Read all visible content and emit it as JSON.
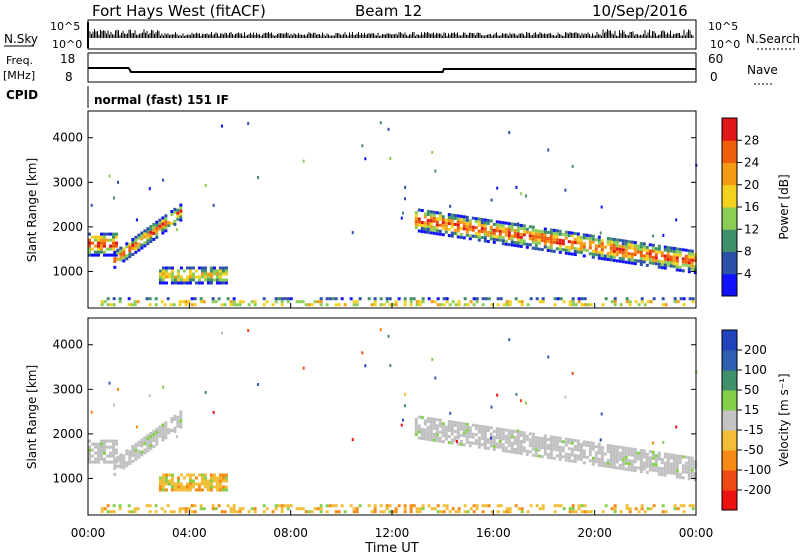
{
  "header": {
    "site": "Fort Hays West (fitACF)",
    "beam": "Beam 12",
    "date": "10/Sep/2016"
  },
  "status_panels": {
    "nsky_label": "N.Sky",
    "nsky_ticks": [
      "10^5",
      "10^0"
    ],
    "nsearch_label": "N.Search",
    "nsearch_ticks": [
      "10^5",
      "10^0"
    ],
    "freq_label": "Freq.",
    "freq_unit": "[MHz]",
    "freq_ticks": [
      "18",
      "8"
    ],
    "nave_label": "Nave",
    "nave_ticks": [
      "60",
      "0"
    ],
    "cpid_label": "CPID",
    "cpid_value": "normal (fast) 151 IF"
  },
  "colors": {
    "power_scale": [
      "#1010ff",
      "#2c4fa8",
      "#3f8f6a",
      "#8ccd55",
      "#f2d21e",
      "#f59a14",
      "#ef5f0a",
      "#e01818"
    ],
    "velocity_scale": [
      "#ee1111",
      "#f04a14",
      "#f68a14",
      "#f1be36",
      "#c4c4c4",
      "#83cf4a",
      "#3f8f6a",
      "#2f5fb0",
      "#2244bb"
    ],
    "ground_scatter": "#c0c0c0"
  },
  "chart_data": [
    {
      "type": "heatmap",
      "panel": "power",
      "ylabel": "Slant Range [km]",
      "y_ticks": [
        "4000",
        "3000",
        "2000",
        "1000"
      ],
      "y_tick_values": [
        4000,
        3000,
        2000,
        1000
      ],
      "ylim": [
        180,
        4600
      ],
      "x_hours_range": [
        0,
        24
      ],
      "colorbar": {
        "label": "Power [dB]",
        "tick_labels": [
          "28",
          "24",
          "20",
          "16",
          "12",
          "8",
          "4"
        ],
        "tick_values": [
          28,
          24,
          20,
          16,
          12,
          8,
          4
        ],
        "range": [
          0,
          32
        ]
      },
      "regions": [
        {
          "name": "morning band",
          "t_start": 0.0,
          "t_end": 1.1,
          "range_center": 1650,
          "range_width": 500
        },
        {
          "name": "morning rising band",
          "t_start": 1.0,
          "t_end": 3.7,
          "range_center_start": 1300,
          "range_center_end": 2400,
          "range_width": 350
        },
        {
          "name": "patch near 04 UT",
          "t_start": 2.8,
          "t_end": 5.5,
          "range_center": 950,
          "range_width": 350
        },
        {
          "name": "afternoon band",
          "t_start": 12.9,
          "t_end": 24.0,
          "range_center_start": 2200,
          "range_center_end": 1250,
          "range_width": 500
        },
        {
          "name": "near-range echoes",
          "t_start": 0.5,
          "t_end": 24.0,
          "range_center": 330,
          "range_width": 220
        }
      ]
    },
    {
      "type": "heatmap",
      "panel": "velocity",
      "ylabel": "Slant Range [km]",
      "xlabel": "Time UT",
      "x_ticks": [
        "00:00",
        "04:00",
        "08:00",
        "12:00",
        "16:00",
        "20:00",
        "00:00"
      ],
      "x_tick_hours": [
        0,
        4,
        8,
        12,
        16,
        20,
        24
      ],
      "y_ticks": [
        "4000",
        "3000",
        "2000",
        "1000"
      ],
      "y_tick_values": [
        4000,
        3000,
        2000,
        1000
      ],
      "ylim": [
        180,
        4600
      ],
      "colorbar": {
        "label": "Velocity [m s⁻¹]",
        "tick_labels": [
          "200",
          "100",
          "50",
          "15",
          "-15",
          "-50",
          "-100",
          "-200"
        ],
        "tick_values": [
          200,
          100,
          50,
          15,
          -15,
          -50,
          -100,
          -200
        ],
        "range": [
          -250,
          250
        ]
      },
      "regions": [
        {
          "name": "ground scatter morning",
          "t_start": 0.0,
          "t_end": 3.7,
          "velocity": 0
        },
        {
          "name": "patch near 04 UT",
          "t_start": 2.8,
          "t_end": 5.5,
          "velocity": -40
        },
        {
          "name": "ground scatter afternoon",
          "t_start": 12.9,
          "t_end": 24.0,
          "velocity": 0
        },
        {
          "name": "near-range echoes",
          "t_start": 0.5,
          "t_end": 24.0,
          "velocity": -20
        }
      ]
    }
  ]
}
